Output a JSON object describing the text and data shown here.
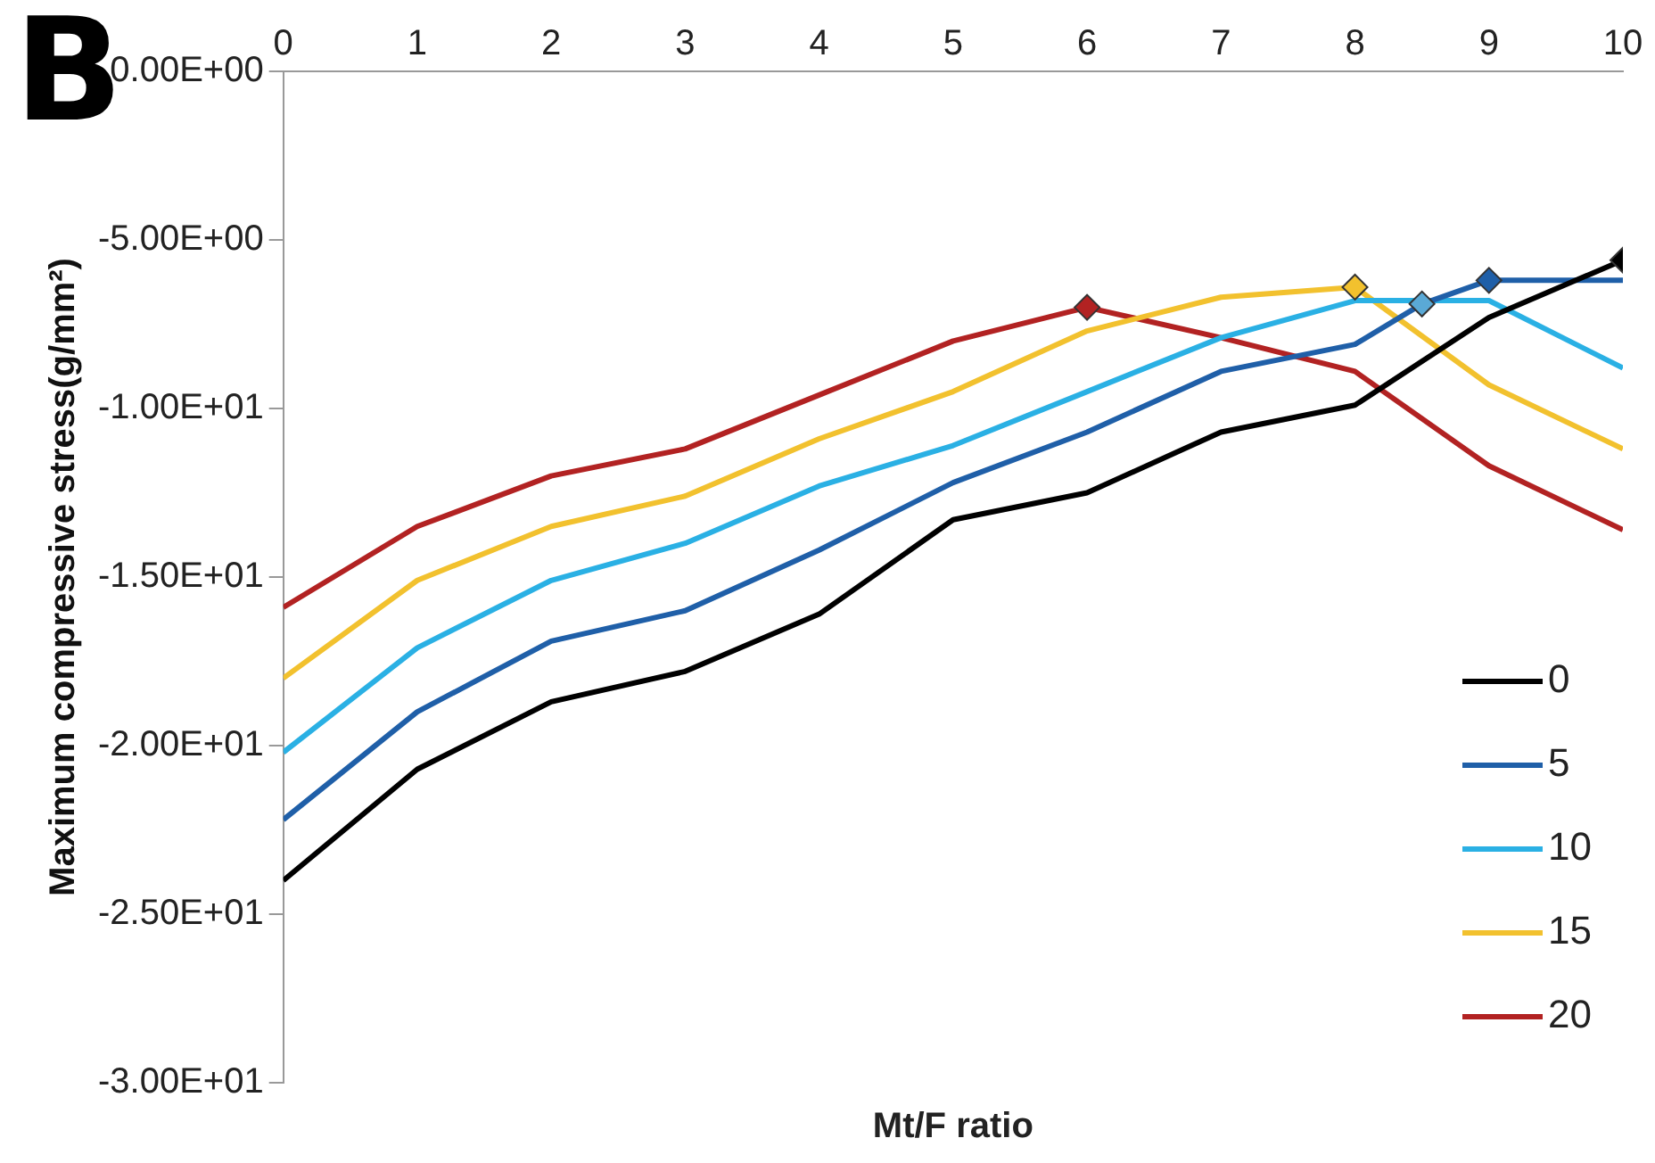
{
  "chart_data": {
    "type": "line",
    "xlabel": "Mt/F ratio",
    "ylabel": "Maximum compressive stress(g/mm²)",
    "annotations": [
      "B"
    ],
    "xlim": [
      0,
      10
    ],
    "xticks": [
      0,
      1,
      2,
      3,
      4,
      5,
      6,
      7,
      8,
      9,
      10
    ],
    "ylim": [
      -30,
      0
    ],
    "yticks": [
      {
        "value": 0,
        "label": "0.00E+00"
      },
      {
        "value": -5,
        "label": "-5.00E+00"
      },
      {
        "value": -10,
        "label": "-1.00E+01"
      },
      {
        "value": -15,
        "label": "-1.50E+01"
      },
      {
        "value": -20,
        "label": "-2.00E+01"
      },
      {
        "value": -25,
        "label": "-2.50E+01"
      },
      {
        "value": -30,
        "label": "-3.00E+01"
      }
    ],
    "grid": false,
    "legend": "bottom right",
    "marker": "none",
    "line_style": "solid",
    "series": [
      {
        "name": "0",
        "color": "#000000",
        "x": [
          0,
          1,
          2,
          3,
          4,
          5,
          6,
          7,
          8,
          9,
          10
        ],
        "values": [
          -24.0,
          -20.7,
          -18.7,
          -17.8,
          -16.1,
          -13.3,
          -12.5,
          -10.7,
          -9.9,
          -7.3,
          -5.6
        ]
      },
      {
        "name": "5",
        "color": "#1f5fa8",
        "x": [
          0,
          1,
          2,
          3,
          4,
          5,
          6,
          7,
          8,
          8.5,
          9,
          10
        ],
        "values": [
          -22.2,
          -19.0,
          -16.9,
          -16.0,
          -14.2,
          -12.2,
          -10.7,
          -8.9,
          -8.1,
          -6.9,
          -6.2,
          -6.2
        ]
      },
      {
        "name": "10",
        "color": "#2ab0e4",
        "x": [
          0,
          1,
          2,
          3,
          4,
          5,
          6,
          7,
          8,
          9,
          10
        ],
        "values": [
          -20.2,
          -17.1,
          -15.1,
          -14.0,
          -12.3,
          -11.1,
          -9.5,
          -7.9,
          -6.8,
          -6.8,
          -8.8
        ]
      },
      {
        "name": "15",
        "color": "#f2c12e",
        "x": [
          0,
          1,
          2,
          3,
          4,
          5,
          6,
          7,
          8,
          9,
          10
        ],
        "values": [
          -18.0,
          -15.1,
          -13.5,
          -12.6,
          -10.9,
          -9.5,
          -7.7,
          -6.7,
          -6.4,
          -9.3,
          -11.2
        ]
      },
      {
        "name": "20",
        "color": "#b22222",
        "x": [
          0,
          1,
          2,
          3,
          4,
          5,
          6,
          7,
          8,
          9,
          10
        ],
        "values": [
          -15.9,
          -13.5,
          -12.0,
          -11.2,
          -9.6,
          -8.0,
          -7.0,
          -7.9,
          -8.9,
          -11.7,
          -13.6
        ]
      },
      {
        "type": "scatter",
        "marker": "diamond",
        "x": [
          6,
          8,
          8.5,
          9,
          10
        ],
        "values": [
          -7.0,
          -6.4,
          -6.9,
          -6.2,
          -5.6
        ],
        "colors": [
          "#b22222",
          "#f2c12e",
          "#5aa9d6",
          "#1f5fa8",
          "#000000"
        ]
      }
    ]
  }
}
